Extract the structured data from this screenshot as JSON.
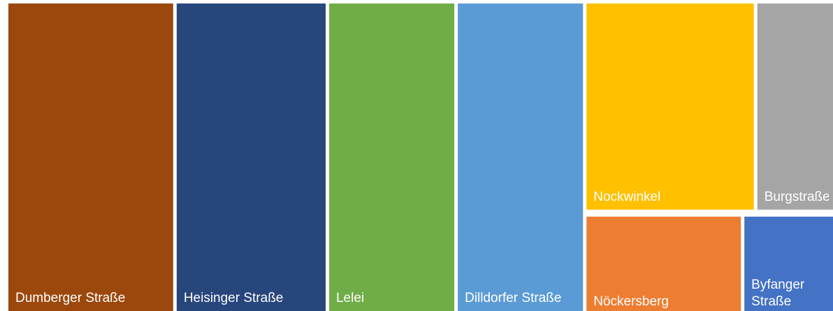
{
  "chart_data": {
    "type": "treemap",
    "categories": [
      "Dumberger Straße",
      "Heisinger Straße",
      "Lelei",
      "Dilldorfer Straße",
      "Nockwinkel",
      "Burgstraße",
      "Nöckersberg",
      "Byfanger Straße"
    ],
    "values": [
      104,
      94,
      79,
      79,
      72,
      48,
      31,
      25
    ],
    "colors": [
      "#9c480c",
      "#27467c",
      "#70ad47",
      "#5b9bd5",
      "#ffc000",
      "#a5a5a5",
      "#ed7d31",
      "#4472c4"
    ]
  }
}
